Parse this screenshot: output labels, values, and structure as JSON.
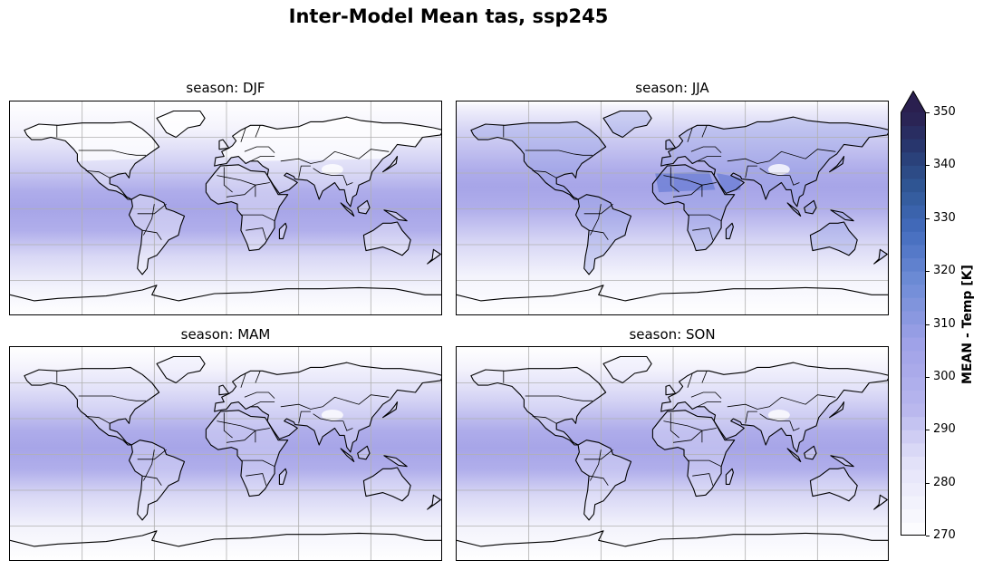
{
  "figure": {
    "title": "Inter-Model Mean tas, ssp245"
  },
  "panels": [
    {
      "title": "season: DJF",
      "season": "DJF"
    },
    {
      "title": "season: JJA",
      "season": "JJA"
    },
    {
      "title": "season: MAM",
      "season": "MAM"
    },
    {
      "title": "season: SON",
      "season": "SON"
    }
  ],
  "colorbar": {
    "label": "MEAN -  Temp [K]",
    "ticks": [
      "350",
      "340",
      "330",
      "320",
      "310",
      "300",
      "290",
      "280",
      "270"
    ],
    "range": [
      270,
      350
    ],
    "extend": "max",
    "colors": {
      "low": "#ffffff",
      "mid": "#a9a7e8",
      "high": "#3f6fbf",
      "top": "#2a1f4f"
    }
  },
  "chart_data": {
    "type": "heatmap",
    "title": "Inter-Model Mean tas, ssp245",
    "variable": "tas",
    "scenario": "ssp245",
    "facets": [
      "season: DJF",
      "season: JJA",
      "season: MAM",
      "season: SON"
    ],
    "colorbar_label": "MEAN -  Temp [K]",
    "vmin": 270,
    "vmax": 350,
    "colorbar_ticks": [
      270,
      280,
      290,
      300,
      310,
      320,
      330,
      340,
      350
    ],
    "grid": true,
    "legend": "right",
    "approx_peak_temp": {
      "DJF": 305,
      "JJA": 318,
      "MAM": 305,
      "SON": 302
    }
  }
}
